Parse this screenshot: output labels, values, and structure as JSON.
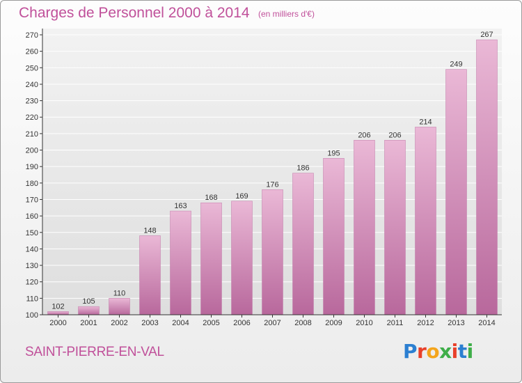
{
  "title": "Charges de Personnel 2000 à 2014",
  "subtitle": "(en milliers d'€)",
  "commune": "SAINT-PIERRE-EN-VAL",
  "logo": {
    "letters": [
      "P",
      "r",
      "o",
      "x",
      "i",
      "t",
      "i"
    ],
    "colors": [
      "#2b7fd1",
      "#e8402a",
      "#f4a51c",
      "#3fae49",
      "#e8402a",
      "#2b7fd1",
      "#3fae49"
    ]
  },
  "colors": {
    "bar": "#d486b8",
    "bar_top": "#eab8d6",
    "bar_bottom": "#b8689c",
    "text": "#c0509a",
    "axis": "#333333",
    "grid": "#ffffff"
  },
  "chart_data": {
    "type": "bar",
    "categories": [
      "2000",
      "2001",
      "2002",
      "2003",
      "2004",
      "2005",
      "2006",
      "2007",
      "2008",
      "2009",
      "2010",
      "2011",
      "2012",
      "2013",
      "2014"
    ],
    "values": [
      102,
      105,
      110,
      148,
      163,
      168,
      169,
      176,
      186,
      195,
      206,
      206,
      214,
      249,
      267
    ],
    "title": "Charges de Personnel 2000 à 2014",
    "ylim": [
      100,
      270
    ],
    "yticks": [
      100,
      110,
      120,
      130,
      140,
      150,
      160,
      170,
      180,
      190,
      200,
      210,
      220,
      230,
      240,
      250,
      260,
      270
    ],
    "grid": true
  }
}
